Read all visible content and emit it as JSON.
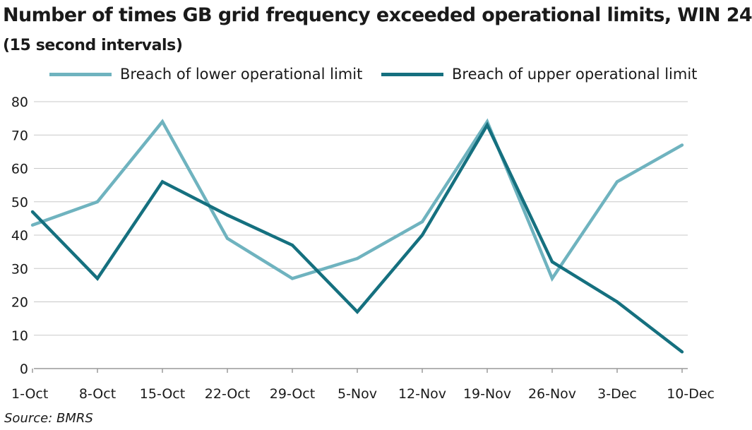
{
  "chart_data": {
    "type": "line",
    "title": "Number of times GB grid frequency exceeded operational limits, WIN 24",
    "subtitle": "(15 second intervals)",
    "categories": [
      "1-Oct",
      "8-Oct",
      "15-Oct",
      "22-Oct",
      "29-Oct",
      "5-Nov",
      "12-Nov",
      "19-Nov",
      "26-Nov",
      "3-Dec",
      "10-Dec"
    ],
    "series": [
      {
        "name": "Breach of lower operational limit",
        "color": "#6fb3bf",
        "values": [
          43,
          50,
          74,
          39,
          27,
          33,
          44,
          74,
          27,
          56,
          67
        ]
      },
      {
        "name": "Breach of upper operational limit",
        "color": "#15707f",
        "values": [
          47,
          27,
          56,
          46,
          37,
          17,
          40,
          73,
          32,
          20,
          5
        ]
      }
    ],
    "ylim": [
      0,
      80
    ],
    "yticks": [
      0,
      10,
      20,
      30,
      40,
      50,
      60,
      70,
      80
    ],
    "grid": true,
    "legend_position": "top",
    "xlabel": "",
    "ylabel": "",
    "source": "Source: BMRS"
  }
}
